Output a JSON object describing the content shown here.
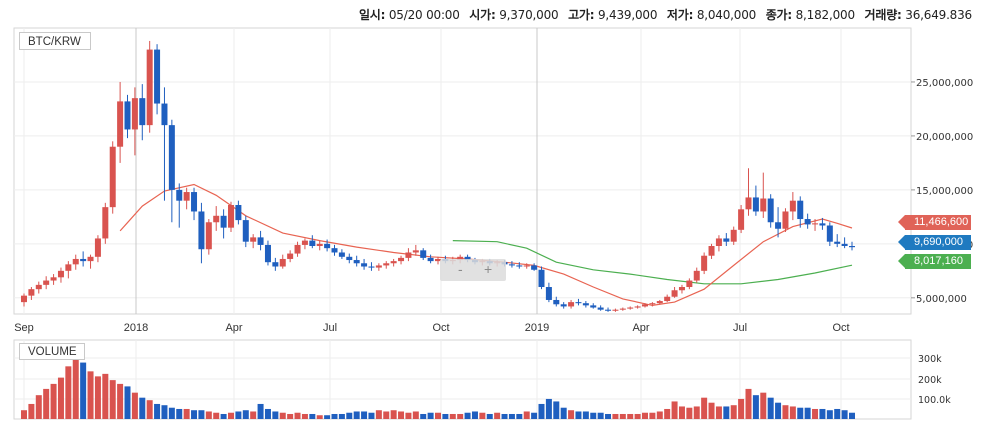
{
  "header": {
    "date_label": "일시:",
    "date_value": "05/20 00:00",
    "open_label": "시가:",
    "open_value": "9,370,000",
    "high_label": "고가:",
    "high_value": "9,439,000",
    "low_label": "저가:",
    "low_value": "8,040,000",
    "close_label": "종가:",
    "close_value": "8,182,000",
    "volume_label": "거래량:",
    "volume_value": "36,649.836"
  },
  "symbol": "BTC/KRW",
  "volume_pane_label": "VOLUME",
  "badges": {
    "ma_short": "11,466,600",
    "last_price": "9,690,000",
    "ma_long": "8,017,160"
  },
  "nav": {
    "minus": "-",
    "plus": "+"
  },
  "colors": {
    "up": "#d9534f",
    "down": "#1f5fbf",
    "ma_short": "#e86452",
    "ma_long": "#4caf50",
    "grid": "#eeeeee"
  },
  "chart_data": {
    "type": "candlestick",
    "price_axis_ticks": [
      "25,000,000",
      "20,000,000",
      "15,000,000",
      "10,000,000",
      "5,000,000"
    ],
    "time_axis_ticks": [
      "Sep",
      "2018",
      "Apr",
      "Jul",
      "Oct",
      "2019",
      "Apr",
      "Jul",
      "Oct"
    ],
    "volume_axis_ticks": [
      "300k",
      "200k",
      "100.0k"
    ],
    "ylim": [
      3500000,
      30000000
    ],
    "candles": [
      [
        4.6,
        5.4,
        4.2,
        5.2
      ],
      [
        5.2,
        6.0,
        4.8,
        5.8
      ],
      [
        5.8,
        6.5,
        5.4,
        6.2
      ],
      [
        6.2,
        7.0,
        5.8,
        6.6
      ],
      [
        6.6,
        7.2,
        6.2,
        6.9
      ],
      [
        6.9,
        7.8,
        6.4,
        7.5
      ],
      [
        7.5,
        8.4,
        6.8,
        8.1
      ],
      [
        8.1,
        9.0,
        7.6,
        8.6
      ],
      [
        8.6,
        9.3,
        7.9,
        8.4
      ],
      [
        8.4,
        9.0,
        7.7,
        8.8
      ],
      [
        8.8,
        10.8,
        8.3,
        10.5
      ],
      [
        10.5,
        13.8,
        10.0,
        13.4
      ],
      [
        13.4,
        19.5,
        12.8,
        19.0
      ],
      [
        19.0,
        25.0,
        17.5,
        23.2
      ],
      [
        23.2,
        23.8,
        19.8,
        20.6
      ],
      [
        20.6,
        24.5,
        18.2,
        23.5
      ],
      [
        23.5,
        24.8,
        19.6,
        21.0
      ],
      [
        21.0,
        28.8,
        20.3,
        28.0
      ],
      [
        28.0,
        28.5,
        22.0,
        23.0
      ],
      [
        23.0,
        24.5,
        14.0,
        21.0
      ],
      [
        21.0,
        21.5,
        12.0,
        15.0
      ],
      [
        15.0,
        15.6,
        11.5,
        14.0
      ],
      [
        14.0,
        15.2,
        13.2,
        14.8
      ],
      [
        14.8,
        15.2,
        12.2,
        13.0
      ],
      [
        13.0,
        13.8,
        8.2,
        9.5
      ],
      [
        9.5,
        12.3,
        9.0,
        12.0
      ],
      [
        12.0,
        13.5,
        11.2,
        12.6
      ],
      [
        12.6,
        13.2,
        10.5,
        11.5
      ],
      [
        11.5,
        13.9,
        11.1,
        13.6
      ],
      [
        13.6,
        14.0,
        11.8,
        12.2
      ],
      [
        12.2,
        12.6,
        9.7,
        10.2
      ],
      [
        10.2,
        10.9,
        9.6,
        10.6
      ],
      [
        10.6,
        11.2,
        9.4,
        9.9
      ],
      [
        9.9,
        10.3,
        8.0,
        8.3
      ],
      [
        8.3,
        8.7,
        7.5,
        7.9
      ],
      [
        7.9,
        9.0,
        7.7,
        8.6
      ],
      [
        8.6,
        9.4,
        8.3,
        9.1
      ],
      [
        9.1,
        10.2,
        8.8,
        9.9
      ],
      [
        9.9,
        10.5,
        9.5,
        10.3
      ],
      [
        10.3,
        10.8,
        9.6,
        9.8
      ],
      [
        9.8,
        10.3,
        9.4,
        10.0
      ],
      [
        10.0,
        10.4,
        9.3,
        9.6
      ],
      [
        9.6,
        9.9,
        8.9,
        9.2
      ],
      [
        9.2,
        9.5,
        8.6,
        8.8
      ],
      [
        8.8,
        9.1,
        8.2,
        8.5
      ],
      [
        8.5,
        8.9,
        7.9,
        8.2
      ],
      [
        8.2,
        8.6,
        7.6,
        7.9
      ],
      [
        7.9,
        8.3,
        7.5,
        7.8
      ],
      [
        7.8,
        8.2,
        7.5,
        8.0
      ],
      [
        8.0,
        8.4,
        7.7,
        8.2
      ],
      [
        8.2,
        8.6,
        7.9,
        8.4
      ],
      [
        8.4,
        8.9,
        8.1,
        8.7
      ],
      [
        8.7,
        9.6,
        8.4,
        9.2
      ],
      [
        9.2,
        9.9,
        8.9,
        9.4
      ],
      [
        9.4,
        9.6,
        8.5,
        8.7
      ],
      [
        8.7,
        9.0,
        8.2,
        8.4
      ],
      [
        8.4,
        8.8,
        8.1,
        8.6
      ],
      [
        8.6,
        8.9,
        8.2,
        8.4
      ],
      [
        8.4,
        8.8,
        8.1,
        8.5
      ],
      [
        8.5,
        9.0,
        8.2,
        8.8
      ],
      [
        8.8,
        9.0,
        8.3,
        8.5
      ],
      [
        8.5,
        8.7,
        8.1,
        8.3
      ],
      [
        8.3,
        8.6,
        8.0,
        8.4
      ],
      [
        8.4,
        8.6,
        8.0,
        8.2
      ],
      [
        8.2,
        8.5,
        7.9,
        8.3
      ],
      [
        8.3,
        8.5,
        7.9,
        8.1
      ],
      [
        8.1,
        8.4,
        7.8,
        8.0
      ],
      [
        8.0,
        8.3,
        7.7,
        7.9
      ],
      [
        7.9,
        8.2,
        7.7,
        8.0
      ],
      [
        8.0,
        8.2,
        7.5,
        7.6
      ],
      [
        7.6,
        7.9,
        5.8,
        6.0
      ],
      [
        6.0,
        6.4,
        4.6,
        4.8
      ],
      [
        4.8,
        5.1,
        4.2,
        4.4
      ],
      [
        4.4,
        4.6,
        4.0,
        4.2
      ],
      [
        4.2,
        4.8,
        4.0,
        4.6
      ],
      [
        4.6,
        4.9,
        4.3,
        4.5
      ],
      [
        4.5,
        4.7,
        4.1,
        4.3
      ],
      [
        4.3,
        4.5,
        4.0,
        4.1
      ],
      [
        4.1,
        4.3,
        3.8,
        3.9
      ],
      [
        3.9,
        4.1,
        3.7,
        3.8
      ],
      [
        3.8,
        4.0,
        3.7,
        3.9
      ],
      [
        3.9,
        4.1,
        3.8,
        4.0
      ],
      [
        4.0,
        4.2,
        3.9,
        4.1
      ],
      [
        4.1,
        4.3,
        4.0,
        4.2
      ],
      [
        4.2,
        4.5,
        4.1,
        4.4
      ],
      [
        4.4,
        4.6,
        4.2,
        4.5
      ],
      [
        4.5,
        4.8,
        4.4,
        4.7
      ],
      [
        4.7,
        5.3,
        4.6,
        5.1
      ],
      [
        5.1,
        6.0,
        5.0,
        5.7
      ],
      [
        5.7,
        6.2,
        5.4,
        6.0
      ],
      [
        6.0,
        6.8,
        5.8,
        6.6
      ],
      [
        6.6,
        7.8,
        6.4,
        7.5
      ],
      [
        7.5,
        9.2,
        7.2,
        8.9
      ],
      [
        8.9,
        10.0,
        8.6,
        9.8
      ],
      [
        9.8,
        10.8,
        9.3,
        10.5
      ],
      [
        10.5,
        11.0,
        9.8,
        10.2
      ],
      [
        10.2,
        11.6,
        9.9,
        11.3
      ],
      [
        11.3,
        13.6,
        11.0,
        13.2
      ],
      [
        13.2,
        17.0,
        12.6,
        14.3
      ],
      [
        14.3,
        15.4,
        12.6,
        13.0
      ],
      [
        13.0,
        16.6,
        12.4,
        14.2
      ],
      [
        14.2,
        14.6,
        11.5,
        12.0
      ],
      [
        12.0,
        13.4,
        10.6,
        11.4
      ],
      [
        11.4,
        13.3,
        11.1,
        13.0
      ],
      [
        13.0,
        14.8,
        12.2,
        14.0
      ],
      [
        14.0,
        14.4,
        11.5,
        12.3
      ],
      [
        12.3,
        12.8,
        11.4,
        11.8
      ],
      [
        11.8,
        12.3,
        11.2,
        11.9
      ],
      [
        11.9,
        12.4,
        11.3,
        11.7
      ],
      [
        11.7,
        12.0,
        9.8,
        10.2
      ],
      [
        10.2,
        10.9,
        9.7,
        10.0
      ],
      [
        10.0,
        10.6,
        9.6,
        9.8
      ],
      [
        9.8,
        10.2,
        9.4,
        9.69
      ]
    ],
    "ma_short": [
      [
        13,
        11.2
      ],
      [
        16,
        13.5
      ],
      [
        19,
        14.9
      ],
      [
        23,
        15.5
      ],
      [
        26,
        14.5
      ],
      [
        30,
        12.6
      ],
      [
        35,
        11.0
      ],
      [
        40,
        10.3
      ],
      [
        45,
        9.7
      ],
      [
        50,
        9.2
      ],
      [
        55,
        8.8
      ],
      [
        60,
        8.6
      ],
      [
        65,
        8.3
      ],
      [
        69,
        8.0
      ],
      [
        73,
        7.2
      ],
      [
        77,
        6.0
      ],
      [
        81,
        4.9
      ],
      [
        85,
        4.3
      ],
      [
        88,
        4.6
      ],
      [
        92,
        5.8
      ],
      [
        96,
        8.0
      ],
      [
        100,
        10.2
      ],
      [
        104,
        11.6
      ],
      [
        108,
        12.3
      ],
      [
        110,
        11.9
      ],
      [
        112,
        11.47
      ]
    ],
    "ma_long": [
      [
        58,
        10.3
      ],
      [
        64,
        10.2
      ],
      [
        68,
        9.6
      ],
      [
        72,
        8.3
      ],
      [
        77,
        7.6
      ],
      [
        82,
        7.2
      ],
      [
        87,
        6.7
      ],
      [
        92,
        6.3
      ],
      [
        97,
        6.3
      ],
      [
        102,
        6.7
      ],
      [
        107,
        7.3
      ],
      [
        112,
        8.02
      ]
    ],
    "volume": [
      0.07,
      0.12,
      0.19,
      0.24,
      0.28,
      0.33,
      0.42,
      0.51,
      0.45,
      0.38,
      0.34,
      0.36,
      0.31,
      0.28,
      0.26,
      0.21,
      0.17,
      0.15,
      0.12,
      0.11,
      0.09,
      0.08,
      0.08,
      0.07,
      0.07,
      0.06,
      0.05,
      0.04,
      0.05,
      0.06,
      0.07,
      0.06,
      0.12,
      0.08,
      0.06,
      0.05,
      0.04,
      0.05,
      0.04,
      0.04,
      0.03,
      0.03,
      0.04,
      0.04,
      0.05,
      0.06,
      0.06,
      0.05,
      0.07,
      0.06,
      0.07,
      0.06,
      0.05,
      0.06,
      0.04,
      0.05,
      0.05,
      0.04,
      0.04,
      0.04,
      0.05,
      0.06,
      0.05,
      0.04,
      0.05,
      0.04,
      0.04,
      0.04,
      0.06,
      0.05,
      0.12,
      0.16,
      0.14,
      0.09,
      0.07,
      0.06,
      0.06,
      0.05,
      0.05,
      0.04,
      0.04,
      0.04,
      0.04,
      0.04,
      0.05,
      0.05,
      0.06,
      0.08,
      0.14,
      0.1,
      0.09,
      0.1,
      0.17,
      0.13,
      0.1,
      0.1,
      0.11,
      0.16,
      0.24,
      0.19,
      0.21,
      0.17,
      0.13,
      0.11,
      0.1,
      0.09,
      0.09,
      0.08,
      0.08,
      0.07,
      0.08,
      0.07,
      0.05
    ]
  }
}
